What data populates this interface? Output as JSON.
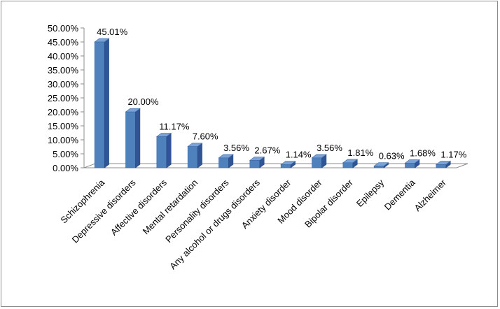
{
  "chart_data": {
    "type": "bar",
    "categories": [
      "Schizophrenia",
      "Depressive disorders",
      "Affective disorders",
      "Mental retardation",
      "Personality disorders",
      "Any alcohol or drugs disorders",
      "Anxiety disorder",
      "Mood disorder",
      "Bipolar disorder",
      "Epilepsy",
      "Dementia",
      "Alzheimer"
    ],
    "values": [
      45.01,
      20.0,
      11.17,
      7.6,
      3.56,
      2.67,
      1.14,
      3.56,
      1.81,
      0.63,
      1.68,
      1.17
    ],
    "data_labels": [
      "45.01%",
      "20.00%",
      "11.17%",
      "7.60%",
      "3.56%",
      "2.67%",
      "1.14%",
      "3.56%",
      "1.81%",
      "0.63%",
      "1.68%",
      "1.17%"
    ],
    "y_ticks": [
      "0.00%",
      "5.00%",
      "10.00%",
      "15.00%",
      "20.00%",
      "25.00%",
      "30.00%",
      "35.00%",
      "40.00%",
      "45.00%",
      "50.00%"
    ],
    "ylim": [
      0,
      50
    ],
    "title": "",
    "xlabel": "",
    "ylabel": "",
    "grid": false,
    "legend": "none",
    "bar_color": "#4f81bd",
    "bar_side_color": "#2f5597",
    "bar_top_color": "#7aa2d6"
  }
}
